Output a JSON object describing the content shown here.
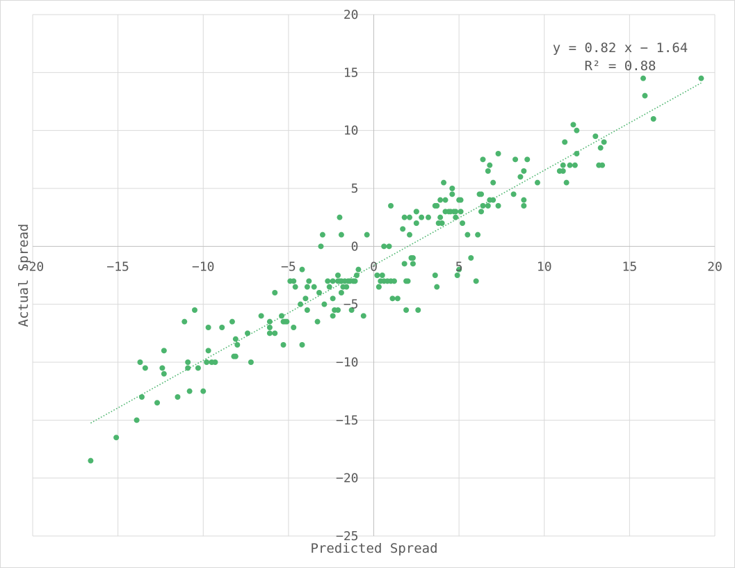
{
  "chart_data": {
    "type": "scatter",
    "xlabel": "Predicted Spread",
    "ylabel": "Actual Spread",
    "xlim": [
      -20,
      20
    ],
    "ylim": [
      -25,
      20
    ],
    "x_ticks": [
      -20,
      -15,
      -10,
      -5,
      0,
      5,
      10,
      15,
      20
    ],
    "y_ticks": [
      20,
      15,
      10,
      5,
      0,
      -5,
      -10,
      -15,
      -20,
      -25
    ],
    "x_tick_labels": [
      "-20",
      "−15",
      "−10",
      "−5",
      "0",
      "5",
      "10",
      "15",
      "20"
    ],
    "y_tick_labels": [
      "20",
      "15",
      "10",
      "5",
      "0",
      "−5",
      "−10",
      "−15",
      "−20",
      "−25"
    ],
    "grid": true,
    "marker_color": "#4cb56e",
    "trendline": {
      "type": "linear",
      "slope": 0.82,
      "intercept": -1.64,
      "r_squared": 0.88,
      "x_range": [
        -16.6,
        19.2
      ],
      "style": "dotted",
      "color": "#4cb56e",
      "equation_label": "y = 0.82 x − 1.64",
      "r2_label": "R² = 0.88"
    },
    "points": [
      [
        -16.6,
        -18.5
      ],
      [
        -15.1,
        -16.5
      ],
      [
        -13.9,
        -15.0
      ],
      [
        -13.7,
        -10.0
      ],
      [
        -13.6,
        -13.0
      ],
      [
        -13.4,
        -10.5
      ],
      [
        -12.7,
        -13.5
      ],
      [
        -12.4,
        -10.5
      ],
      [
        -12.3,
        -9.0
      ],
      [
        -12.3,
        -11.0
      ],
      [
        -11.5,
        -13.0
      ],
      [
        -11.1,
        -6.5
      ],
      [
        -10.9,
        -10.0
      ],
      [
        -10.9,
        -10.5
      ],
      [
        -10.8,
        -12.5
      ],
      [
        -10.5,
        -5.5
      ],
      [
        -10.3,
        -10.5
      ],
      [
        -10.0,
        -12.5
      ],
      [
        -9.8,
        -10.0
      ],
      [
        -9.7,
        -7.0
      ],
      [
        -9.7,
        -9.0
      ],
      [
        -9.5,
        -10.0
      ],
      [
        -9.3,
        -10.0
      ],
      [
        -8.9,
        -7.0
      ],
      [
        -8.3,
        -6.5
      ],
      [
        -8.2,
        -9.5
      ],
      [
        -8.1,
        -8.0
      ],
      [
        -8.1,
        -9.5
      ],
      [
        -8.0,
        -8.5
      ],
      [
        -7.4,
        -7.5
      ],
      [
        -7.2,
        -10.0
      ],
      [
        -6.6,
        -6.0
      ],
      [
        -6.1,
        -7.5
      ],
      [
        -6.1,
        -6.5
      ],
      [
        -6.1,
        -7.0
      ],
      [
        -5.8,
        -7.5
      ],
      [
        -5.8,
        -4.0
      ],
      [
        -5.4,
        -6.0
      ],
      [
        -5.3,
        -6.5
      ],
      [
        -5.3,
        -8.5
      ],
      [
        -5.2,
        -6.5
      ],
      [
        -5.1,
        -6.5
      ],
      [
        -4.9,
        -3.0
      ],
      [
        -4.7,
        -3.0
      ],
      [
        -4.7,
        -7.0
      ],
      [
        -4.6,
        -3.5
      ],
      [
        -4.3,
        -5.0
      ],
      [
        -4.2,
        -8.5
      ],
      [
        -4.2,
        -2.0
      ],
      [
        -4.0,
        -4.5
      ],
      [
        -3.9,
        -5.5
      ],
      [
        -3.9,
        -3.5
      ],
      [
        -3.8,
        -3.0
      ],
      [
        -3.5,
        -3.5
      ],
      [
        -3.3,
        -6.5
      ],
      [
        -3.2,
        -4.0
      ],
      [
        -3.1,
        0.0
      ],
      [
        -3.0,
        1.0
      ],
      [
        -2.9,
        -5.0
      ],
      [
        -2.7,
        -3.0
      ],
      [
        -2.6,
        -3.5
      ],
      [
        -2.4,
        -6.0
      ],
      [
        -2.4,
        -4.5
      ],
      [
        -2.4,
        -3.0
      ],
      [
        -2.3,
        -5.5
      ],
      [
        -2.1,
        -3.0
      ],
      [
        -2.1,
        -5.5
      ],
      [
        -2.1,
        -2.5
      ],
      [
        -2.0,
        2.5
      ],
      [
        -2.0,
        -3.0
      ],
      [
        -1.9,
        1.0
      ],
      [
        -1.9,
        -4.0
      ],
      [
        -1.9,
        -3.0
      ],
      [
        -1.8,
        -3.5
      ],
      [
        -1.7,
        -3.0
      ],
      [
        -1.6,
        -3.5
      ],
      [
        -1.5,
        -3.0
      ],
      [
        -1.4,
        -3.0
      ],
      [
        -1.3,
        -5.5
      ],
      [
        -1.2,
        -3.0
      ],
      [
        -1.1,
        -3.0
      ],
      [
        -1.0,
        -2.5
      ],
      [
        -0.9,
        -2.0
      ],
      [
        -0.6,
        -6.0
      ],
      [
        -0.4,
        1.0
      ],
      [
        0.2,
        -2.5
      ],
      [
        0.3,
        -3.5
      ],
      [
        0.3,
        -3.5
      ],
      [
        0.4,
        -3.0
      ],
      [
        0.5,
        -2.5
      ],
      [
        0.6,
        0.0
      ],
      [
        0.6,
        -3.0
      ],
      [
        0.8,
        -3.0
      ],
      [
        0.9,
        0.0
      ],
      [
        1.0,
        -3.0
      ],
      [
        1.0,
        3.5
      ],
      [
        1.1,
        -4.5
      ],
      [
        1.2,
        -3.0
      ],
      [
        1.4,
        -4.5
      ],
      [
        1.7,
        1.5
      ],
      [
        1.8,
        2.5
      ],
      [
        1.8,
        -1.5
      ],
      [
        1.9,
        -5.5
      ],
      [
        1.9,
        -3.0
      ],
      [
        2.0,
        -3.0
      ],
      [
        2.1,
        2.5
      ],
      [
        2.1,
        1.0
      ],
      [
        2.2,
        -1.0
      ],
      [
        2.3,
        -1.0
      ],
      [
        2.3,
        -1.5
      ],
      [
        2.5,
        3.0
      ],
      [
        2.5,
        2.0
      ],
      [
        2.5,
        3.0
      ],
      [
        2.6,
        -5.5
      ],
      [
        2.8,
        2.5
      ],
      [
        3.2,
        2.5
      ],
      [
        3.6,
        -2.5
      ],
      [
        3.6,
        3.5
      ],
      [
        3.7,
        3.5
      ],
      [
        3.7,
        -3.5
      ],
      [
        3.8,
        2.0
      ],
      [
        3.9,
        2.5
      ],
      [
        3.9,
        4.0
      ],
      [
        4.0,
        2.0
      ],
      [
        4.1,
        5.5
      ],
      [
        4.2,
        3.0
      ],
      [
        4.2,
        4.0
      ],
      [
        4.4,
        3.0
      ],
      [
        4.5,
        3.0
      ],
      [
        4.6,
        4.5
      ],
      [
        4.6,
        5.0
      ],
      [
        4.7,
        3.0
      ],
      [
        4.8,
        3.0
      ],
      [
        4.8,
        2.5
      ],
      [
        4.9,
        -2.5
      ],
      [
        5.0,
        4.0
      ],
      [
        5.0,
        -2.0
      ],
      [
        5.1,
        3.0
      ],
      [
        5.1,
        4.0
      ],
      [
        5.2,
        2.0
      ],
      [
        5.5,
        1.0
      ],
      [
        5.7,
        -1.0
      ],
      [
        6.0,
        -3.0
      ],
      [
        6.1,
        1.0
      ],
      [
        6.2,
        4.5
      ],
      [
        6.3,
        3.0
      ],
      [
        6.3,
        4.5
      ],
      [
        6.4,
        3.5
      ],
      [
        6.4,
        7.5
      ],
      [
        6.7,
        3.5
      ],
      [
        6.7,
        6.5
      ],
      [
        6.8,
        4.0
      ],
      [
        6.8,
        7.0
      ],
      [
        7.0,
        5.5
      ],
      [
        7.0,
        4.0
      ],
      [
        7.3,
        3.5
      ],
      [
        7.3,
        8.0
      ],
      [
        8.2,
        4.5
      ],
      [
        8.3,
        7.5
      ],
      [
        8.6,
        6.0
      ],
      [
        8.8,
        4.0
      ],
      [
        8.8,
        6.5
      ],
      [
        8.8,
        3.5
      ],
      [
        9.0,
        7.5
      ],
      [
        9.6,
        5.5
      ],
      [
        10.9,
        6.5
      ],
      [
        11.1,
        7.0
      ],
      [
        11.1,
        6.5
      ],
      [
        11.2,
        9.0
      ],
      [
        11.3,
        5.5
      ],
      [
        11.5,
        7.0
      ],
      [
        11.7,
        10.5
      ],
      [
        11.8,
        7.0
      ],
      [
        11.9,
        10.0
      ],
      [
        11.9,
        8.0
      ],
      [
        13.0,
        9.5
      ],
      [
        13.2,
        7.0
      ],
      [
        13.3,
        8.5
      ],
      [
        13.4,
        7.0
      ],
      [
        13.5,
        9.0
      ],
      [
        15.8,
        14.5
      ],
      [
        15.9,
        13.0
      ],
      [
        16.4,
        11.0
      ],
      [
        19.2,
        14.5
      ]
    ]
  }
}
